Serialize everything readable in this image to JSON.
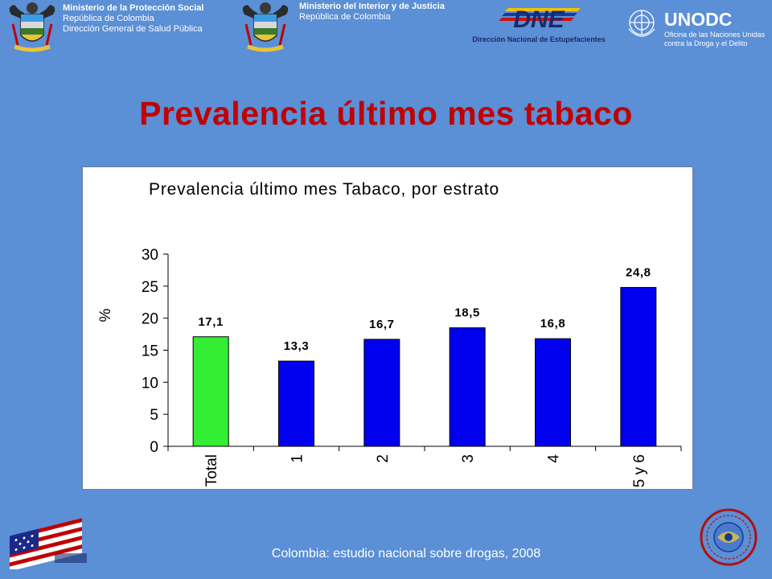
{
  "header": {
    "ministry_protection": {
      "line1": "Ministerio de la Protección Social",
      "line2": "República de Colombia",
      "line3": "Dirección General de Salud Pública"
    },
    "ministry_interior": {
      "line1": "Ministerio del Interior y de Justicia",
      "line2": "República de Colombia"
    },
    "dne": {
      "logo": "DNE",
      "name": "Dirección Nacional de Estupefacientes"
    },
    "unodc": {
      "logo": "UNODC",
      "line1": "Oficina de las Naciones Unidas",
      "line2": "contra la Droga y el Delito"
    }
  },
  "slide_title": "Prevalencia último mes tabaco",
  "footer": {
    "source": "Colombia: estudio nacional sobre drogas, 2008"
  },
  "colors": {
    "background": "#5b8fd6",
    "title": "#c00000",
    "bar_total": "#33ee33",
    "bar_strata": "#0000ee"
  },
  "chart_data": {
    "type": "bar",
    "title": "Prevalencia último mes Tabaco, por estrato",
    "xlabel": "",
    "ylabel": "%",
    "ylim": [
      0,
      30
    ],
    "yticks": [
      "0",
      "5",
      "10",
      "15",
      "20",
      "25",
      "30"
    ],
    "categories": [
      "Total",
      "1",
      "2",
      "3",
      "4",
      "5 y 6"
    ],
    "values": [
      17.1,
      13.3,
      16.7,
      18.5,
      16.8,
      24.8
    ],
    "value_labels": [
      "17,1",
      "13,3",
      "16,7",
      "18,5",
      "16,8",
      "24,8"
    ],
    "grid": false,
    "legend": false
  }
}
